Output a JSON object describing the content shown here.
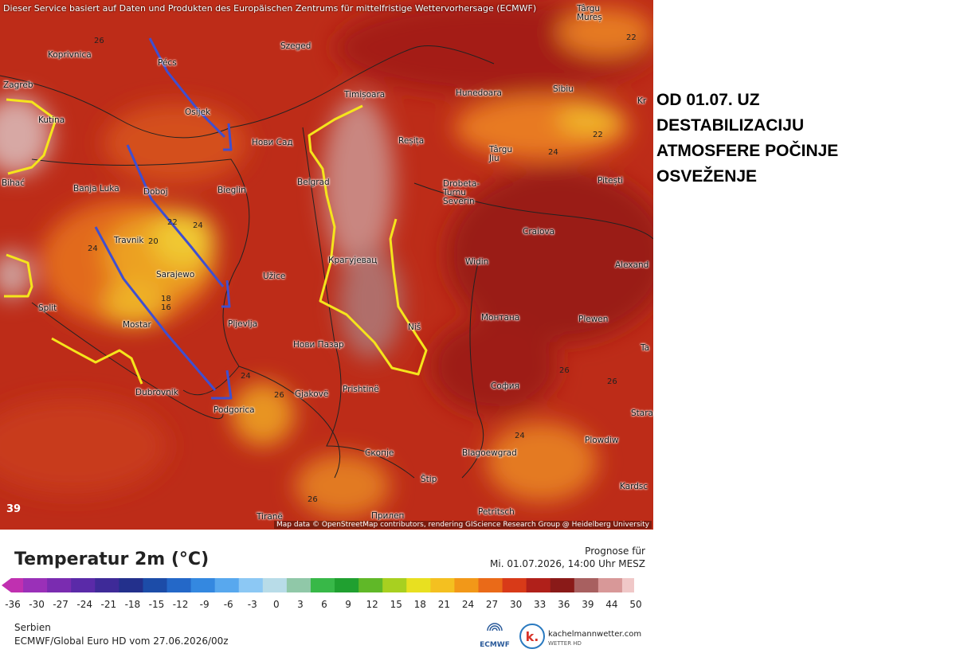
{
  "header": {
    "notice": "Dieser Service basiert auf Daten und Produkten des Europäischen Zentrums für mittelfristige Wettervorhersage (ECMWF)"
  },
  "annotation": {
    "lines": [
      "OD 01.07. UZ",
      "DESTABILIZACIJU",
      "ATMOSFERE POČINJE",
      "OSVEŽENJE"
    ]
  },
  "map": {
    "places": [
      "Koprivnica",
      "Pécs",
      "Szeged",
      "Târgu\nMureș",
      "Zagreb",
      "Kutina",
      "Osijek",
      "Нови Сад",
      "Timișoara",
      "Hunedoara",
      "Sibiu",
      "Reșița",
      "Târgu\nJiu",
      "Bihać",
      "Banja Luka",
      "Doboj",
      "Bieglin",
      "Belgrad",
      "Drobeta-\nTurnu\nSeverin",
      "Pitești",
      "Craiova",
      "Travnik",
      "Alexand",
      "Sarajewo",
      "Užice",
      "Крагујевац",
      "Widin",
      "Split",
      "Mostar",
      "Pljevlja",
      "Niš",
      "Монтана",
      "Plewen",
      "Нови Пазар",
      "Dubrovnik",
      "Podgorica",
      "Prishtinë",
      "Gjakovë",
      "София",
      "Plowdiw",
      "Скопје",
      "Blagoewgrad",
      "Štip",
      "Kardsc",
      "Petritsch",
      "Tiranë",
      "Прилеп",
      "Kr",
      "Ta",
      "Stara"
    ],
    "contour_labels": [
      26,
      22,
      22,
      24,
      20,
      22,
      24,
      24,
      18,
      16,
      24,
      26,
      24,
      26,
      26,
      26,
      39
    ],
    "attribution": "Map data © OpenStreetMap contributors, rendering GIScience Research Group @ Heidelberg University"
  },
  "legend": {
    "title": "Temperatur 2m (°C)",
    "forecast_label": "Prognose für",
    "forecast_time": "Mi. 01.07.2026, 14:00 Uhr MESZ",
    "scale": [
      -36,
      -30,
      -27,
      -24,
      -21,
      -18,
      -15,
      -12,
      -9,
      -6,
      -3,
      0,
      3,
      6,
      9,
      12,
      15,
      18,
      21,
      24,
      27,
      30,
      33,
      36,
      39,
      44,
      50
    ]
  },
  "footer": {
    "region": "Serbien",
    "model_run": "ECMWF/Global Euro HD vom 27.06.2026/00z",
    "logos": [
      "ECMWF",
      "k.",
      "kachelmannwetter.com",
      "WETTER HD"
    ]
  }
}
